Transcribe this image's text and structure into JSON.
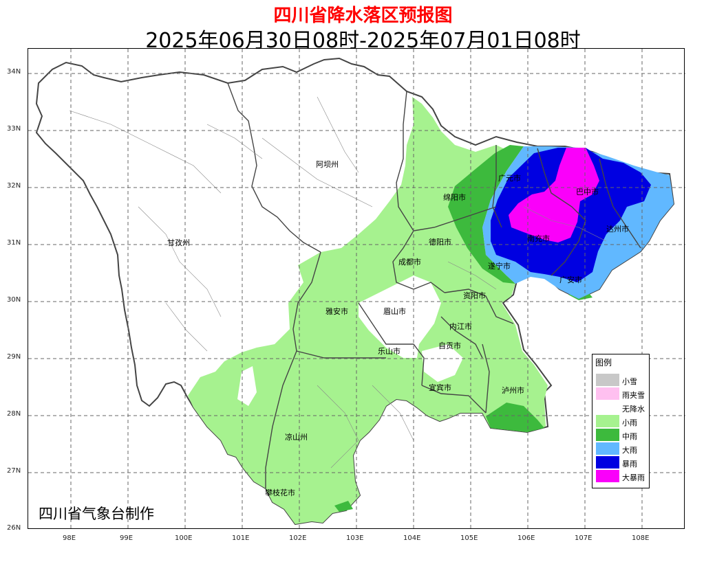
{
  "header": {
    "title": "四川省降水落区预报图",
    "subtitle": "2025年06月30日08时-2025年07月01日08时"
  },
  "axes": {
    "lat_labels": [
      "34N",
      "33N",
      "32N",
      "31N",
      "30N",
      "29N",
      "28N",
      "27N",
      "26N"
    ],
    "lon_labels": [
      "98E",
      "99E",
      "100E",
      "101E",
      "102E",
      "103E",
      "104E",
      "105E",
      "106E",
      "107E",
      "108E"
    ]
  },
  "cities": [
    "阿坝州",
    "甘孜州",
    "绵阳市",
    "广元市",
    "巴中市",
    "达州市",
    "南充市",
    "德阳市",
    "成都市",
    "遂宁市",
    "广安市",
    "资阳市",
    "雅安市",
    "眉山市",
    "内江市",
    "自贡市",
    "乐山市",
    "宜宾市",
    "泸州市",
    "凉山州",
    "攀枝花市"
  ],
  "legend": {
    "title": "图例",
    "items": [
      {
        "label": "小雪",
        "color": "#c8c8c8"
      },
      {
        "label": "雨夹雪",
        "color": "#ffc0f0"
      },
      {
        "label": "无降水",
        "color": "#ffffff"
      },
      {
        "label": "小雨",
        "color": "#a6f28f"
      },
      {
        "label": "中雨",
        "color": "#3dba3d"
      },
      {
        "label": "大雨",
        "color": "#61b8ff"
      },
      {
        "label": "暴雨",
        "color": "#0000e1"
      },
      {
        "label": "大暴雨",
        "color": "#fa00fa"
      }
    ]
  },
  "credit": "四川省气象台制作"
}
